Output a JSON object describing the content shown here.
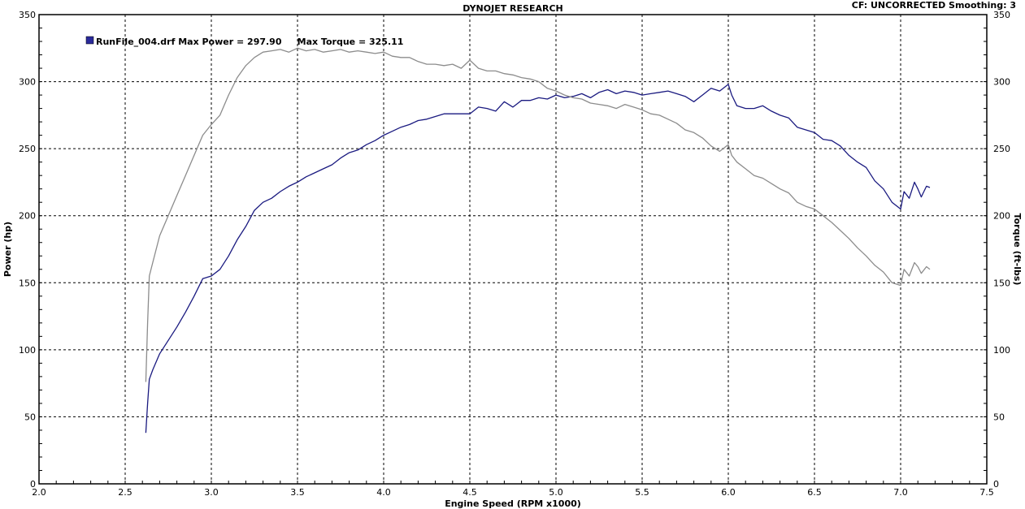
{
  "header": {
    "title": "DYNOJET RESEARCH",
    "status": "CF: UNCORRECTED  Smoothing: 3"
  },
  "legend": {
    "label": "RunFile_004.drf Max Power = 297.90     Max Torque = 325.11",
    "swatch_color": "#2a2a9a"
  },
  "chart_data": {
    "type": "line",
    "title": "DYNOJET RESEARCH",
    "xlabel": "Engine Speed (RPM x1000)",
    "ylabel": "Power (hp)",
    "y2label": "Torque (ft-lbs)",
    "xlim": [
      2.0,
      7.5
    ],
    "ylim": [
      0,
      350
    ],
    "y2lim": [
      0,
      350
    ],
    "xticks": [
      "2.0",
      "2.5",
      "3.0",
      "3.5",
      "4.0",
      "4.5",
      "5.0",
      "5.5",
      "6.0",
      "6.5",
      "7.0",
      "7.5"
    ],
    "yticks": [
      "0",
      "50",
      "100",
      "150",
      "200",
      "250",
      "300",
      "350"
    ],
    "grid": true,
    "legend_position": "top-left",
    "series": [
      {
        "name": "Power",
        "axis": "left",
        "color": "#1a1a80",
        "x": [
          2.62,
          2.63,
          2.64,
          2.66,
          2.7,
          2.75,
          2.8,
          2.85,
          2.9,
          2.95,
          3.0,
          3.05,
          3.1,
          3.15,
          3.2,
          3.25,
          3.3,
          3.35,
          3.4,
          3.45,
          3.5,
          3.55,
          3.6,
          3.65,
          3.7,
          3.75,
          3.8,
          3.85,
          3.9,
          3.95,
          4.0,
          4.05,
          4.1,
          4.15,
          4.2,
          4.25,
          4.3,
          4.35,
          4.4,
          4.45,
          4.5,
          4.55,
          4.6,
          4.65,
          4.7,
          4.75,
          4.8,
          4.85,
          4.9,
          4.95,
          5.0,
          5.05,
          5.1,
          5.15,
          5.2,
          5.25,
          5.3,
          5.35,
          5.4,
          5.45,
          5.5,
          5.55,
          5.6,
          5.65,
          5.7,
          5.75,
          5.8,
          5.85,
          5.9,
          5.95,
          6.0,
          6.02,
          6.05,
          6.1,
          6.15,
          6.2,
          6.25,
          6.3,
          6.35,
          6.4,
          6.45,
          6.5,
          6.55,
          6.6,
          6.65,
          6.7,
          6.75,
          6.8,
          6.85,
          6.9,
          6.95,
          7.0,
          7.02,
          7.05,
          7.08,
          7.1,
          7.12,
          7.15,
          7.17
        ],
        "values": [
          38,
          60,
          78,
          85,
          97,
          107,
          117,
          128,
          140,
          153,
          155,
          160,
          170,
          182,
          192,
          204,
          210,
          213,
          218,
          222,
          225,
          229,
          232,
          235,
          238,
          243,
          247,
          249,
          253,
          256,
          260,
          263,
          266,
          268,
          271,
          272,
          274,
          276,
          276,
          276,
          276,
          281,
          280,
          278,
          285,
          281,
          286,
          286,
          288,
          287,
          290,
          288,
          289,
          291,
          288,
          292,
          294,
          291,
          293,
          292,
          290,
          291,
          292,
          293,
          291,
          289,
          285,
          290,
          295,
          293,
          298,
          290,
          282,
          280,
          280,
          282,
          278,
          275,
          273,
          266,
          264,
          262,
          257,
          256,
          252,
          245,
          240,
          236,
          226,
          220,
          210,
          205,
          218,
          213,
          225,
          220,
          214,
          222,
          221
        ]
      },
      {
        "name": "Torque",
        "axis": "right",
        "color": "#8c8c8c",
        "x": [
          2.62,
          2.63,
          2.64,
          2.66,
          2.7,
          2.75,
          2.8,
          2.85,
          2.9,
          2.95,
          3.0,
          3.05,
          3.1,
          3.15,
          3.2,
          3.25,
          3.3,
          3.35,
          3.4,
          3.45,
          3.5,
          3.55,
          3.6,
          3.65,
          3.7,
          3.75,
          3.8,
          3.85,
          3.9,
          3.95,
          4.0,
          4.05,
          4.1,
          4.15,
          4.2,
          4.25,
          4.3,
          4.35,
          4.4,
          4.45,
          4.5,
          4.55,
          4.6,
          4.65,
          4.7,
          4.75,
          4.8,
          4.85,
          4.9,
          4.95,
          5.0,
          5.05,
          5.1,
          5.15,
          5.2,
          5.25,
          5.3,
          5.35,
          5.4,
          5.45,
          5.5,
          5.55,
          5.6,
          5.65,
          5.7,
          5.75,
          5.8,
          5.85,
          5.9,
          5.95,
          6.0,
          6.02,
          6.05,
          6.1,
          6.15,
          6.2,
          6.25,
          6.3,
          6.35,
          6.4,
          6.45,
          6.5,
          6.55,
          6.6,
          6.65,
          6.7,
          6.75,
          6.8,
          6.85,
          6.9,
          6.95,
          7.0,
          7.02,
          7.05,
          7.08,
          7.1,
          7.12,
          7.15,
          7.17
        ],
        "values": [
          76,
          120,
          155,
          165,
          185,
          200,
          215,
          230,
          245,
          260,
          268,
          275,
          290,
          303,
          312,
          318,
          322,
          323,
          324,
          322,
          325,
          323,
          324,
          322,
          323,
          324,
          322,
          323,
          322,
          321,
          322,
          319,
          318,
          318,
          315,
          313,
          313,
          312,
          313,
          310,
          316,
          310,
          308,
          308,
          306,
          305,
          303,
          302,
          300,
          295,
          293,
          290,
          288,
          287,
          284,
          283,
          282,
          280,
          283,
          281,
          279,
          276,
          275,
          272,
          269,
          264,
          262,
          258,
          252,
          248,
          253,
          245,
          240,
          235,
          230,
          228,
          224,
          220,
          217,
          210,
          207,
          205,
          200,
          195,
          189,
          183,
          176,
          170,
          163,
          158,
          150,
          148,
          160,
          155,
          165,
          162,
          157,
          162,
          160
        ]
      }
    ]
  }
}
